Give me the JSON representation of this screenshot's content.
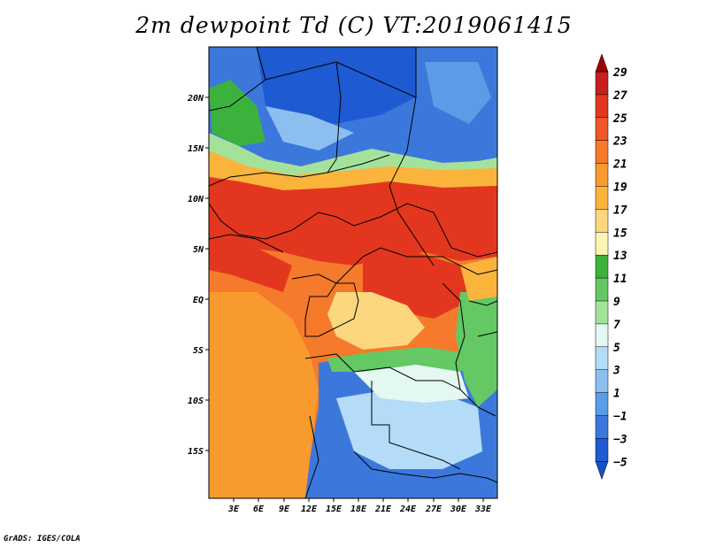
{
  "title": "2m dewpoint Td (C) VT:2019061415",
  "footer": "GrADS: IGES/COLA",
  "lat_labels": [
    "20N",
    "15N",
    "10N",
    "5N",
    "EQ",
    "5S",
    "10S",
    "15S"
  ],
  "lon_labels": [
    "3E",
    "6E",
    "9E",
    "12E",
    "15E",
    "18E",
    "21E",
    "24E",
    "27E",
    "30E",
    "33E"
  ],
  "colorbar": {
    "labels": [
      "29",
      "27",
      "25",
      "23",
      "21",
      "19",
      "17",
      "15",
      "13",
      "11",
      "9",
      "7",
      "5",
      "3",
      "1",
      "−1",
      "−3",
      "−5"
    ],
    "colors": [
      "#a00000",
      "#c81e1e",
      "#e2371e",
      "#f05628",
      "#f57a2c",
      "#f89a2e",
      "#fab43c",
      "#fcd77e",
      "#fef5b4",
      "#3cb23c",
      "#64c864",
      "#a4e29c",
      "#e2f8f0",
      "#b4dcf8",
      "#8cbef0",
      "#5a9ce6",
      "#3c78dc",
      "#1e5ad2",
      "#1450c8"
    ]
  },
  "legend_colors": {
    "dry_deep": "#1e5ad2",
    "dry": "#3c78dc",
    "dry_light": "#6ea8ea",
    "cool": "#b4dcf8",
    "mild": "#e2f8f0",
    "green_light": "#a4e29c",
    "green": "#3cb23c",
    "yellow": "#fcd77e",
    "orange_light": "#fab43c",
    "orange": "#f57a2c",
    "orange_red": "#f05628",
    "red": "#e2371e"
  }
}
